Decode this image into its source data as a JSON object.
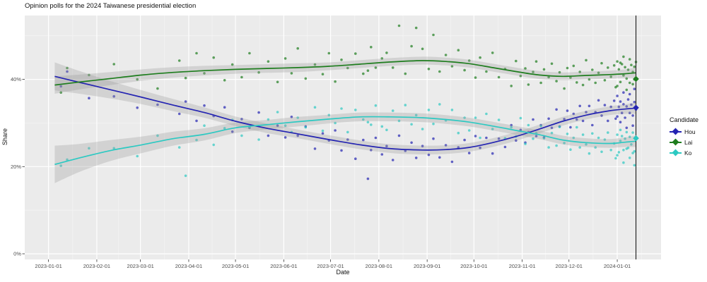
{
  "title": "Opinion polls for the 2024 Taiwanese presidential election",
  "chart_data": {
    "type": "scatter",
    "title": "Opinion polls for the 2024 Taiwanese presidential election",
    "xlabel": "Date",
    "ylabel": "Share",
    "legend_title": "Candidate",
    "legend_position": "right",
    "grid": true,
    "y_ticks": [
      [
        "0%",
        0
      ],
      [
        "20%",
        20
      ],
      [
        "40%",
        40
      ]
    ],
    "y_minor": [
      10,
      30,
      50
    ],
    "ylim": [
      -1.5,
      54.5
    ],
    "x_ticks": [
      [
        "2023-01-01",
        0
      ],
      [
        "2023-02-01",
        31
      ],
      [
        "2023-03-01",
        59
      ],
      [
        "2023-04-01",
        90
      ],
      [
        "2023-05-01",
        120
      ],
      [
        "2023-06-01",
        151
      ],
      [
        "2023-07-01",
        181
      ],
      [
        "2023-08-01",
        212
      ],
      [
        "2023-09-01",
        243
      ],
      [
        "2023-10-01",
        273
      ],
      [
        "2023-11-01",
        304
      ],
      [
        "2023-12-01",
        334
      ],
      [
        "2024-01-01",
        365
      ]
    ],
    "x_unit": "days since 2023-01-01",
    "vline_day": 377,
    "colors": {
      "panel_background": "#ebebeb",
      "grid_major": "#ffffff",
      "grid_minor": "#f5f5f5",
      "band": "#999999",
      "vline": "#1a1a1a",
      "tick_text": "#4d4d4d"
    },
    "series": [
      {
        "name": "Hou",
        "color": "#2424b2",
        "result_pct": 33.5,
        "trend": [
          [
            4,
            40.7,
            3.2
          ],
          [
            20,
            39.3,
            2.6
          ],
          [
            40,
            37.6,
            2.0
          ],
          [
            60,
            35.9,
            1.6
          ],
          [
            80,
            34.1,
            1.4
          ],
          [
            100,
            32.4,
            1.2
          ],
          [
            120,
            30.4,
            1.1
          ],
          [
            140,
            28.8,
            1.1
          ],
          [
            160,
            27.5,
            1.0
          ],
          [
            180,
            26.2,
            1.0
          ],
          [
            200,
            25.0,
            1.0
          ],
          [
            220,
            24.1,
            1.0
          ],
          [
            240,
            23.8,
            1.0
          ],
          [
            255,
            23.9,
            1.0
          ],
          [
            270,
            24.4,
            1.0
          ],
          [
            285,
            25.5,
            1.0
          ],
          [
            300,
            26.9,
            1.0
          ],
          [
            315,
            28.6,
            1.0
          ],
          [
            330,
            30.4,
            1.0
          ],
          [
            345,
            31.8,
            1.0
          ],
          [
            360,
            32.8,
            1.0
          ],
          [
            370,
            33.2,
            1.1
          ],
          [
            377,
            33.4,
            1.3
          ]
        ]
      },
      {
        "name": "Lai",
        "color": "#1e7d1e",
        "result_pct": 40.1,
        "trend": [
          [
            4,
            38.7,
            2.0
          ],
          [
            20,
            39.4,
            1.7
          ],
          [
            40,
            40.2,
            1.5
          ],
          [
            60,
            41.0,
            1.3
          ],
          [
            80,
            41.6,
            1.2
          ],
          [
            100,
            42.0,
            1.1
          ],
          [
            120,
            42.3,
            1.0
          ],
          [
            140,
            42.5,
            1.0
          ],
          [
            160,
            42.7,
            1.0
          ],
          [
            180,
            43.0,
            0.9
          ],
          [
            200,
            43.5,
            0.9
          ],
          [
            220,
            44.0,
            0.9
          ],
          [
            240,
            44.3,
            0.9
          ],
          [
            255,
            44.1,
            0.9
          ],
          [
            270,
            43.6,
            0.9
          ],
          [
            285,
            42.7,
            0.9
          ],
          [
            300,
            41.8,
            0.9
          ],
          [
            315,
            41.0,
            0.9
          ],
          [
            330,
            40.7,
            0.9
          ],
          [
            345,
            40.9,
            0.9
          ],
          [
            360,
            41.1,
            0.9
          ],
          [
            370,
            41.3,
            1.0
          ],
          [
            377,
            41.5,
            1.2
          ]
        ]
      },
      {
        "name": "Ko",
        "color": "#2cc9c2",
        "result_pct": 26.5,
        "trend": [
          [
            4,
            20.5,
            4.3
          ],
          [
            20,
            22.0,
            3.2
          ],
          [
            40,
            23.7,
            2.4
          ],
          [
            60,
            25.0,
            1.9
          ],
          [
            80,
            26.4,
            1.6
          ],
          [
            100,
            27.4,
            1.4
          ],
          [
            120,
            28.9,
            1.2
          ],
          [
            140,
            29.6,
            1.1
          ],
          [
            160,
            30.3,
            1.1
          ],
          [
            180,
            30.9,
            1.0
          ],
          [
            200,
            31.4,
            1.0
          ],
          [
            220,
            31.4,
            1.0
          ],
          [
            240,
            31.2,
            1.0
          ],
          [
            255,
            30.8,
            1.0
          ],
          [
            270,
            30.2,
            1.0
          ],
          [
            285,
            29.3,
            1.0
          ],
          [
            300,
            28.3,
            1.0
          ],
          [
            315,
            27.3,
            1.0
          ],
          [
            330,
            26.1,
            1.0
          ],
          [
            345,
            25.5,
            1.0
          ],
          [
            360,
            25.3,
            1.0
          ],
          [
            370,
            25.6,
            1.1
          ],
          [
            377,
            25.8,
            1.3
          ]
        ]
      }
    ],
    "polls_columns": [
      "day",
      "Hou",
      "Lai",
      "Ko"
    ],
    "polls": [
      [
        8,
        38.4,
        37.0,
        20.2
      ],
      [
        12,
        41.8,
        42.6,
        21.6
      ],
      [
        26,
        35.7,
        41.0,
        24.2
      ],
      [
        42,
        36.1,
        43.5,
        24.2
      ],
      [
        57,
        33.5,
        40.0,
        22.4
      ],
      [
        70,
        34.2,
        37.9,
        27.1
      ],
      [
        84,
        32.1,
        44.3,
        24.4
      ],
      [
        88,
        34.9,
        40.3,
        17.9
      ],
      [
        95,
        30.5,
        46.0,
        26.1
      ],
      [
        100,
        34.0,
        41.4,
        29.4
      ],
      [
        106,
        31.6,
        45.0,
        25.0
      ],
      [
        113,
        33.6,
        39.8,
        28.8
      ],
      [
        118,
        28.0,
        43.4,
        30.7
      ],
      [
        124,
        30.9,
        40.5,
        27.1
      ],
      [
        129,
        28.9,
        46.0,
        29.0
      ],
      [
        135,
        32.4,
        41.6,
        26.2
      ],
      [
        141,
        27.1,
        44.1,
        30.8
      ],
      [
        147,
        29.4,
        39.4,
        32.5
      ],
      [
        152,
        26.7,
        44.8,
        29.4
      ],
      [
        156,
        31.4,
        41.4,
        27.9
      ],
      [
        160,
        27.1,
        47.1,
        31.2
      ],
      [
        165,
        29.2,
        40.2,
        29.0
      ],
      [
        171,
        24.1,
        43.4,
        33.6
      ],
      [
        176,
        27.6,
        41.2,
        28.2
      ],
      [
        180,
        26.0,
        46.0,
        31.8
      ],
      [
        184,
        28.3,
        39.5,
        30.0
      ],
      [
        188,
        23.7,
        44.5,
        33.3
      ],
      [
        192,
        26.2,
        42.6,
        27.9
      ],
      [
        197,
        21.8,
        45.9,
        33.0
      ],
      [
        202,
        26.1,
        41.3,
        30.8
      ],
      [
        205,
        17.2,
        42.0,
        30.2
      ],
      [
        207,
        23.8,
        47.4,
        29.6
      ],
      [
        210,
        26.6,
        42.7,
        34.0
      ],
      [
        214,
        22.8,
        44.8,
        29.2
      ],
      [
        217,
        24.7,
        46.1,
        28.4
      ],
      [
        221,
        21.5,
        42.7,
        32.8
      ],
      [
        225,
        27.1,
        52.3,
        30.5
      ],
      [
        229,
        23.6,
        41.3,
        34.1
      ],
      [
        233,
        25.5,
        47.6,
        29.7
      ],
      [
        236,
        22.0,
        51.8,
        31.8
      ],
      [
        240,
        24.7,
        47.0,
        28.6
      ],
      [
        244,
        22.7,
        42.4,
        33.0
      ],
      [
        247,
        26.4,
        50.2,
        29.8
      ],
      [
        251,
        22.1,
        41.8,
        34.3
      ],
      [
        255,
        24.9,
        45.6,
        30.6
      ],
      [
        259,
        21.1,
        43.0,
        33.0
      ],
      [
        263,
        24.4,
        46.7,
        27.7
      ],
      [
        267,
        26.1,
        42.1,
        31.2
      ],
      [
        270,
        23.1,
        44.3,
        28.3
      ],
      [
        274,
        27.0,
        40.4,
        31.2
      ],
      [
        277,
        24.3,
        45.0,
        26.6
      ],
      [
        281,
        26.6,
        41.8,
        32.1
      ],
      [
        285,
        23.0,
        46.1,
        28.6
      ],
      [
        289,
        26.4,
        40.5,
        30.7
      ],
      [
        293,
        24.5,
        42.4,
        26.5
      ],
      [
        297,
        29.5,
        38.5,
        29.0
      ],
      [
        300,
        26.0,
        44.2,
        26.9
      ],
      [
        303,
        28.4,
        40.8,
        31.1
      ],
      [
        306,
        25.5,
        42.5,
        25.2
      ],
      [
        308,
        27.9,
        38.8,
        29.5
      ],
      [
        311,
        30.8,
        41.7,
        26.4
      ],
      [
        313,
        27.0,
        44.1,
        27.7
      ],
      [
        316,
        29.5,
        39.2,
        29.3
      ],
      [
        318,
        26.7,
        42.3,
        26.5
      ],
      [
        321,
        31.0,
        40.5,
        24.4
      ],
      [
        323,
        28.9,
        43.6,
        27.7
      ],
      [
        326,
        33.1,
        39.6,
        24.8
      ],
      [
        328,
        29.2,
        41.6,
        29.1
      ],
      [
        331,
        30.9,
        37.9,
        25.4
      ],
      [
        333,
        32.8,
        42.6,
        27.5
      ],
      [
        335,
        29.0,
        40.4,
        23.9
      ],
      [
        337,
        32.1,
        43.1,
        26.6
      ],
      [
        339,
        30.8,
        39.3,
        29.0
      ],
      [
        341,
        33.9,
        41.7,
        24.4
      ],
      [
        343,
        30.5,
        38.7,
        27.3
      ],
      [
        345,
        32.5,
        44.4,
        25.1
      ],
      [
        347,
        33.9,
        40.0,
        23.0
      ],
      [
        349,
        29.5,
        42.2,
        27.6
      ],
      [
        351,
        32.5,
        39.2,
        24.4
      ],
      [
        353,
        35.2,
        41.5,
        26.6
      ],
      [
        355,
        31.7,
        43.7,
        23.4
      ],
      [
        357,
        34.1,
        39.8,
        26.2
      ],
      [
        359,
        30.5,
        42.7,
        27.8
      ],
      [
        361,
        33.7,
        40.6,
        23.8
      ],
      [
        363,
        35.1,
        43.2,
        25.3
      ],
      [
        364,
        31.0,
        38.2,
        21.9
      ],
      [
        365,
        31.5,
        38.5,
        27.3
      ],
      [
        365,
        36.2,
        44.1,
        22.6
      ],
      [
        366,
        33.7,
        42.3,
        23.3
      ],
      [
        367,
        34.9,
        39.4,
        25.9
      ],
      [
        367,
        30.2,
        43.8,
        28.4
      ],
      [
        368,
        32.3,
        43.5,
        27.0
      ],
      [
        369,
        34.3,
        40.9,
        23.8
      ],
      [
        369,
        37.0,
        45.2,
        20.9
      ],
      [
        370,
        31.2,
        42.8,
        26.4
      ],
      [
        371,
        33.8,
        40.2,
        27.9
      ],
      [
        371,
        28.9,
        37.6,
        24.1
      ],
      [
        372,
        35.4,
        42.2,
        24.3
      ],
      [
        373,
        32.3,
        39.2,
        26.8
      ],
      [
        373,
        36.6,
        44.6,
        22.0
      ],
      [
        374,
        34.2,
        43.3,
        25.1
      ],
      [
        375,
        31.7,
        41.7,
        27.8
      ],
      [
        375,
        29.4,
        38.9,
        23.1
      ],
      [
        376,
        34.8,
        40.0,
        23.5
      ],
      [
        376,
        37.8,
        42.9,
        20.3
      ],
      [
        377,
        33.1,
        44.0,
        26.3
      ]
    ]
  }
}
